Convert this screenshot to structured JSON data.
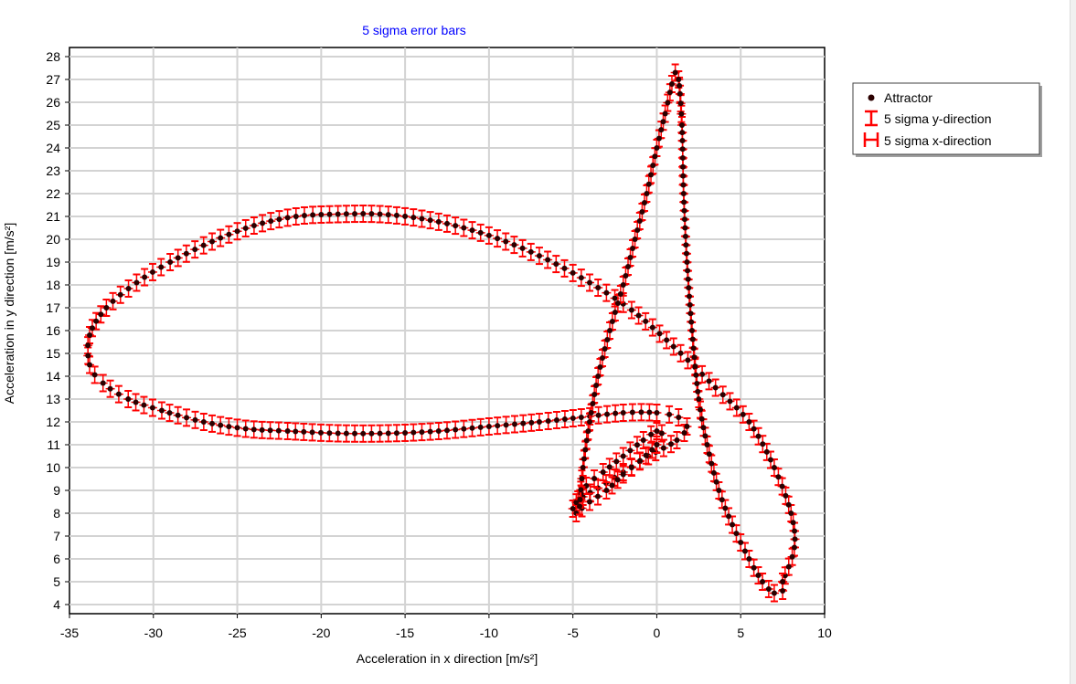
{
  "chart_data": {
    "type": "scatter",
    "title": "5 sigma error bars",
    "xlabel": "Acceleration in x direction [m/s²]",
    "ylabel": "Acceleration in y direction [m/s²]",
    "xlim": [
      -35,
      10
    ],
    "ylim": [
      3.6,
      28.4
    ],
    "x_ticks": [
      -35,
      -30,
      -25,
      -20,
      -15,
      -10,
      -5,
      0,
      5,
      10
    ],
    "y_ticks": [
      4,
      5,
      6,
      7,
      8,
      9,
      10,
      11,
      12,
      13,
      14,
      15,
      16,
      17,
      18,
      19,
      20,
      21,
      22,
      23,
      24,
      25,
      26,
      27,
      28
    ],
    "grid": true,
    "legend_position": "right",
    "colors": {
      "title": "#0000ff",
      "marker": "#2b0000",
      "error_bar": "#ff0000",
      "grid": "#d3d3d3"
    },
    "legend": [
      {
        "label": "Attractor",
        "icon": "marker-dot-icon"
      },
      {
        "label": "5 sigma y-direction",
        "icon": "y-error-bar-icon"
      },
      {
        "label": "5 sigma x-direction",
        "icon": "x-error-bar-icon"
      }
    ],
    "error_bar_sigma": 5,
    "series": [
      {
        "name": "Attractor",
        "segments": [
          {
            "note": "large left lobe, upper arc",
            "points": [
              [
                7.5,
                5.0
              ],
              [
                8.2,
                6.5
              ],
              [
                8.0,
                8.0
              ],
              [
                7.0,
                10.0
              ],
              [
                5.5,
                12.0
              ],
              [
                3.5,
                13.5
              ],
              [
                1.0,
                15.3
              ],
              [
                -1.5,
                16.9
              ],
              [
                -4.0,
                18.1
              ],
              [
                -6.5,
                19.1
              ],
              [
                -9.0,
                19.9
              ],
              [
                -11.5,
                20.5
              ],
              [
                -14.0,
                20.9
              ],
              [
                -16.5,
                21.1
              ],
              [
                -19.0,
                21.1
              ],
              [
                -21.5,
                21.0
              ],
              [
                -24.0,
                20.6
              ],
              [
                -26.5,
                19.9
              ],
              [
                -29.0,
                19.0
              ],
              [
                -31.0,
                18.1
              ],
              [
                -32.8,
                17.0
              ],
              [
                -33.8,
                15.8
              ],
              [
                -33.8,
                14.5
              ],
              [
                -33.0,
                13.7
              ],
              [
                -31.5,
                13.0
              ],
              [
                -29.5,
                12.5
              ],
              [
                -27.0,
                12.0
              ],
              [
                -24.5,
                11.7
              ],
              [
                -22.0,
                11.6
              ],
              [
                -19.0,
                11.5
              ],
              [
                -16.0,
                11.5
              ],
              [
                -13.0,
                11.6
              ],
              [
                -10.0,
                11.8
              ],
              [
                -7.0,
                12.0
              ],
              [
                -4.5,
                12.2
              ],
              [
                -2.0,
                12.4
              ],
              [
                0.0,
                12.4
              ],
              [
                1.3,
                12.2
              ],
              [
                1.8,
                11.8
              ],
              [
                1.2,
                11.2
              ],
              [
                -0.5,
                10.5
              ],
              [
                -2.0,
                9.8
              ],
              [
                -3.5,
                9.1
              ],
              [
                -4.7,
                8.6
              ]
            ]
          },
          {
            "note": "inner small loop",
            "points": [
              [
                -4.8,
                8.0
              ],
              [
                -4.0,
                8.5
              ],
              [
                -3.0,
                9.0
              ],
              [
                -2.0,
                9.7
              ],
              [
                -1.0,
                10.3
              ],
              [
                0.0,
                11.0
              ],
              [
                0.3,
                11.5
              ],
              [
                0.0,
                11.6
              ],
              [
                -0.8,
                11.2
              ],
              [
                -2.0,
                10.5
              ],
              [
                -3.2,
                9.8
              ],
              [
                -4.2,
                9.2
              ],
              [
                -5.0,
                8.2
              ]
            ]
          },
          {
            "note": "spike to top and down",
            "points": [
              [
                -4.6,
                8.3
              ],
              [
                -4.4,
                10.0
              ],
              [
                -4.0,
                12.0
              ],
              [
                -3.5,
                14.0
              ],
              [
                -2.8,
                16.0
              ],
              [
                -2.0,
                18.0
              ],
              [
                -1.3,
                20.0
              ],
              [
                -0.6,
                22.0
              ],
              [
                0.0,
                24.0
              ],
              [
                0.5,
                25.5
              ],
              [
                0.9,
                26.8
              ],
              [
                1.1,
                27.3
              ],
              [
                1.3,
                27.0
              ],
              [
                1.5,
                25.0
              ],
              [
                1.6,
                22.0
              ],
              [
                1.8,
                19.0
              ],
              [
                2.1,
                16.0
              ],
              [
                2.5,
                13.0
              ],
              [
                3.0,
                11.0
              ],
              [
                3.7,
                9.0
              ],
              [
                4.5,
                7.5
              ],
              [
                5.5,
                6.0
              ],
              [
                6.3,
                5.0
              ],
              [
                7.0,
                4.5
              ],
              [
                7.5,
                4.6
              ],
              [
                7.5,
                5.0
              ]
            ]
          }
        ]
      }
    ]
  }
}
